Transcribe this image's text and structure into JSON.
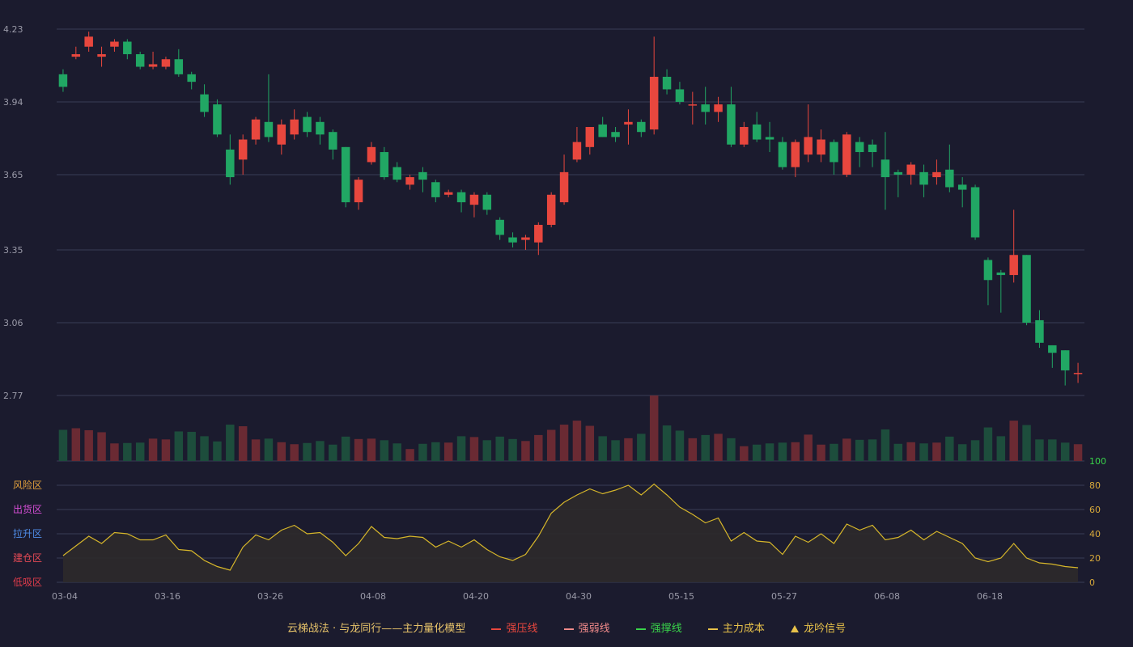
{
  "colors": {
    "background": "#1b1b2e",
    "up": "#e8473e",
    "down": "#21a764",
    "up_volume": "#6a2a33",
    "down_volume": "#1d4d3c",
    "grid": "#3a3c55",
    "axis_text": "#9a9aa8",
    "cost_line": "#d6b62a",
    "cost_fill": "#2e2a2b",
    "osc_axis_text": "#d8a93a",
    "osc_top_label": "#39d34a"
  },
  "legend": {
    "title": "云梯战法 · 与龙同行——主力量化模型",
    "items": [
      {
        "label": "强压线",
        "color": "#e8473e",
        "style": "solid"
      },
      {
        "label": "强弱线",
        "color": "#f08a8a",
        "style": "dash"
      },
      {
        "label": "强撑线",
        "color": "#39d34a",
        "style": "solid"
      },
      {
        "label": "主力成本",
        "color": "#e8c24a",
        "style": "dash"
      },
      {
        "label": "龙吟信号",
        "color": "#e8c24a",
        "style": "triangle"
      }
    ]
  },
  "chart_data": {
    "type": "candlestick",
    "title": "",
    "x_tick_labels": [
      {
        "index": 0,
        "label": "03-04"
      },
      {
        "index": 8,
        "label": "03-16"
      },
      {
        "index": 16,
        "label": "03-26"
      },
      {
        "index": 24,
        "label": "04-08"
      },
      {
        "index": 32,
        "label": "04-20"
      },
      {
        "index": 40,
        "label": "04-30"
      },
      {
        "index": 48,
        "label": "05-15"
      },
      {
        "index": 56,
        "label": "05-27"
      },
      {
        "index": 64,
        "label": "06-08"
      },
      {
        "index": 72,
        "label": "06-18"
      }
    ],
    "price_axis": {
      "ticks": [
        4.23,
        3.94,
        3.65,
        3.35,
        3.06,
        2.77
      ],
      "range": [
        2.77,
        4.23
      ]
    },
    "candles": [
      [
        4.05,
        4.0,
        4.07,
        3.98
      ],
      [
        4.12,
        4.13,
        4.16,
        4.11
      ],
      [
        4.16,
        4.2,
        4.22,
        4.14
      ],
      [
        4.12,
        4.13,
        4.16,
        4.08
      ],
      [
        4.16,
        4.18,
        4.19,
        4.14
      ],
      [
        4.18,
        4.13,
        4.19,
        4.11
      ],
      [
        4.13,
        4.08,
        4.14,
        4.07
      ],
      [
        4.08,
        4.09,
        4.14,
        4.07
      ],
      [
        4.08,
        4.11,
        4.12,
        4.07
      ],
      [
        4.11,
        4.05,
        4.15,
        4.04
      ],
      [
        4.05,
        4.02,
        4.06,
        3.99
      ],
      [
        3.97,
        3.9,
        4.01,
        3.88
      ],
      [
        3.93,
        3.81,
        3.95,
        3.8
      ],
      [
        3.75,
        3.64,
        3.81,
        3.61
      ],
      [
        3.71,
        3.79,
        3.81,
        3.65
      ],
      [
        3.79,
        3.87,
        3.88,
        3.77
      ],
      [
        3.86,
        3.8,
        4.05,
        3.78
      ],
      [
        3.77,
        3.85,
        3.87,
        3.73
      ],
      [
        3.81,
        3.87,
        3.91,
        3.79
      ],
      [
        3.88,
        3.82,
        3.9,
        3.8
      ],
      [
        3.86,
        3.81,
        3.88,
        3.77
      ],
      [
        3.82,
        3.75,
        3.83,
        3.71
      ],
      [
        3.76,
        3.54,
        3.76,
        3.52
      ],
      [
        3.54,
        3.63,
        3.64,
        3.51
      ],
      [
        3.7,
        3.76,
        3.78,
        3.69
      ],
      [
        3.74,
        3.64,
        3.76,
        3.63
      ],
      [
        3.68,
        3.63,
        3.7,
        3.62
      ],
      [
        3.61,
        3.64,
        3.65,
        3.59
      ],
      [
        3.66,
        3.63,
        3.68,
        3.58
      ],
      [
        3.62,
        3.56,
        3.63,
        3.54
      ],
      [
        3.57,
        3.58,
        3.59,
        3.56
      ],
      [
        3.58,
        3.54,
        3.59,
        3.5
      ],
      [
        3.53,
        3.57,
        3.58,
        3.48
      ],
      [
        3.57,
        3.51,
        3.58,
        3.49
      ],
      [
        3.47,
        3.41,
        3.48,
        3.39
      ],
      [
        3.4,
        3.38,
        3.42,
        3.36
      ],
      [
        3.39,
        3.4,
        3.41,
        3.35
      ],
      [
        3.38,
        3.45,
        3.46,
        3.33
      ],
      [
        3.45,
        3.57,
        3.58,
        3.44
      ],
      [
        3.54,
        3.66,
        3.73,
        3.53
      ],
      [
        3.71,
        3.78,
        3.84,
        3.7
      ],
      [
        3.76,
        3.84,
        3.84,
        3.73
      ],
      [
        3.85,
        3.8,
        3.88,
        3.8
      ],
      [
        3.82,
        3.8,
        3.84,
        3.78
      ],
      [
        3.85,
        3.86,
        3.91,
        3.77
      ],
      [
        3.86,
        3.82,
        3.87,
        3.8
      ],
      [
        3.83,
        4.04,
        4.2,
        3.81
      ],
      [
        4.04,
        3.99,
        4.07,
        3.97
      ],
      [
        3.99,
        3.94,
        4.02,
        3.93
      ],
      [
        3.93,
        3.93,
        3.98,
        3.85
      ],
      [
        3.93,
        3.9,
        4.0,
        3.85
      ],
      [
        3.9,
        3.93,
        3.96,
        3.86
      ],
      [
        3.93,
        3.77,
        4.0,
        3.76
      ],
      [
        3.77,
        3.84,
        3.86,
        3.76
      ],
      [
        3.85,
        3.79,
        3.9,
        3.78
      ],
      [
        3.8,
        3.79,
        3.86,
        3.74
      ],
      [
        3.78,
        3.68,
        3.8,
        3.67
      ],
      [
        3.68,
        3.78,
        3.79,
        3.64
      ],
      [
        3.73,
        3.8,
        3.93,
        3.7
      ],
      [
        3.73,
        3.79,
        3.83,
        3.7
      ],
      [
        3.78,
        3.7,
        3.79,
        3.65
      ],
      [
        3.65,
        3.81,
        3.82,
        3.64
      ],
      [
        3.78,
        3.74,
        3.8,
        3.68
      ],
      [
        3.77,
        3.74,
        3.79,
        3.68
      ],
      [
        3.71,
        3.64,
        3.82,
        3.51
      ],
      [
        3.66,
        3.65,
        3.67,
        3.56
      ],
      [
        3.65,
        3.69,
        3.7,
        3.61
      ],
      [
        3.66,
        3.61,
        3.69,
        3.56
      ],
      [
        3.64,
        3.66,
        3.71,
        3.61
      ],
      [
        3.67,
        3.6,
        3.77,
        3.58
      ],
      [
        3.61,
        3.59,
        3.64,
        3.52
      ],
      [
        3.6,
        3.4,
        3.61,
        3.39
      ],
      [
        3.31,
        3.23,
        3.32,
        3.13
      ],
      [
        3.26,
        3.25,
        3.27,
        3.1
      ],
      [
        3.25,
        3.33,
        3.51,
        3.22
      ],
      [
        3.33,
        3.06,
        3.33,
        3.05
      ],
      [
        3.07,
        2.98,
        3.11,
        2.96
      ],
      [
        2.97,
        2.94,
        2.97,
        2.88
      ],
      [
        2.95,
        2.87,
        2.95,
        2.81
      ],
      [
        2.86,
        2.86,
        2.9,
        2.82
      ]
    ],
    "volume": [
      78,
      82,
      77,
      72,
      44,
      45,
      46,
      56,
      54,
      74,
      73,
      62,
      49,
      91,
      87,
      54,
      56,
      47,
      42,
      45,
      50,
      41,
      61,
      55,
      56,
      52,
      44,
      30,
      43,
      47,
      46,
      62,
      60,
      52,
      61,
      55,
      50,
      65,
      78,
      91,
      101,
      88,
      62,
      52,
      57,
      68,
      164,
      89,
      76,
      57,
      65,
      68,
      57,
      37,
      41,
      44,
      46,
      47,
      66,
      41,
      43,
      56,
      53,
      54,
      79,
      43,
      47,
      44,
      46,
      61,
      42,
      52,
      84,
      62,
      101,
      90,
      54,
      54,
      46,
      42
    ],
    "oscillator": {
      "name": "主力成本",
      "zones": [
        "风险区",
        "出货区",
        "拉升区",
        "建仓区",
        "低吸区"
      ],
      "zone_colors": [
        "#e3a13c",
        "#d84fd8",
        "#4f8de8",
        "#e64a55",
        "#e23c4b"
      ],
      "axis_ticks": [
        100,
        80,
        60,
        40,
        20,
        0
      ],
      "range": [
        0,
        100
      ],
      "values": [
        22,
        30,
        38,
        32,
        41,
        40,
        35,
        35,
        39,
        27,
        26,
        18,
        13,
        10,
        29,
        39,
        35,
        43,
        47,
        40,
        41,
        33,
        22,
        32,
        46,
        37,
        36,
        38,
        37,
        29,
        34,
        29,
        35,
        27,
        21,
        18,
        23,
        38,
        57,
        66,
        72,
        77,
        73,
        76,
        80,
        72,
        81,
        72,
        62,
        56,
        49,
        53,
        34,
        41,
        34,
        33,
        23,
        38,
        33,
        40,
        32,
        48,
        43,
        47,
        35,
        37,
        43,
        35,
        42,
        37,
        32,
        20,
        17,
        20,
        32,
        20,
        16,
        15,
        13,
        12
      ]
    }
  }
}
